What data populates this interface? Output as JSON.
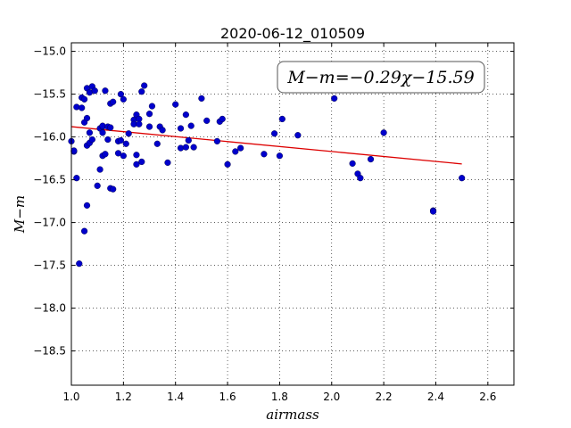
{
  "chart_data": {
    "type": "scatter",
    "title": "2020-06-12_010509",
    "xlabel": "airmass",
    "ylabel": "M−m",
    "xlim": [
      1.0,
      2.7
    ],
    "ylim": [
      -18.9,
      -14.9
    ],
    "y_inverted": true,
    "grid": true,
    "xticks": [
      1.0,
      1.2,
      1.4,
      1.6,
      1.8,
      2.0,
      2.2,
      2.4,
      2.6
    ],
    "yticks": [
      -15.0,
      -15.5,
      -16.0,
      -16.5,
      -17.0,
      -17.5,
      -18.0,
      -18.5
    ],
    "xtick_labels": [
      "1.0",
      "1.2",
      "1.4",
      "1.6",
      "1.8",
      "2.0",
      "2.2",
      "2.4",
      "2.6"
    ],
    "ytick_labels": [
      "−15.0",
      "−15.5",
      "−16.0",
      "−16.5",
      "−17.0",
      "−17.5",
      "−18.0",
      "−18.5"
    ],
    "annotation": "M−m=−0.29χ−15.59",
    "annotation_position": "top-right",
    "point_color": "#0000cc",
    "fit_color": "#dd0000",
    "fit": {
      "slope": -0.29,
      "intercept": -15.59,
      "x_range": [
        1.0,
        2.5
      ]
    },
    "series": [
      {
        "x": [
          1.0,
          1.01,
          1.01,
          1.02,
          1.02,
          1.03,
          1.04,
          1.04,
          1.05,
          1.05,
          1.05,
          1.06,
          1.06,
          1.06,
          1.06,
          1.07,
          1.07,
          1.07,
          1.08,
          1.08,
          1.09,
          1.1,
          1.11,
          1.11,
          1.12,
          1.12,
          1.12,
          1.12,
          1.13,
          1.13,
          1.14,
          1.14,
          1.15,
          1.15,
          1.15,
          1.16,
          1.16,
          1.18,
          1.18,
          1.19,
          1.19,
          1.2,
          1.2,
          1.21,
          1.22,
          1.24,
          1.24,
          1.25,
          1.25,
          1.25,
          1.26,
          1.26,
          1.27,
          1.27,
          1.28,
          1.3,
          1.3,
          1.31,
          1.33,
          1.34,
          1.35,
          1.37,
          1.4,
          1.42,
          1.42,
          1.44,
          1.44,
          1.45,
          1.46,
          1.47,
          1.5,
          1.52,
          1.56,
          1.57,
          1.58,
          1.6,
          1.63,
          1.65,
          1.74,
          1.78,
          1.8,
          1.81,
          1.87,
          2.01,
          2.08,
          2.1,
          2.11,
          2.15,
          2.2,
          2.39,
          2.39,
          2.5
        ],
        "y": [
          -16.05,
          -16.17,
          -16.16,
          -16.48,
          -15.65,
          -17.48,
          -15.54,
          -15.66,
          -15.56,
          -15.83,
          -17.1,
          -15.43,
          -15.78,
          -16.8,
          -16.1,
          -15.48,
          -15.95,
          -16.07,
          -15.41,
          -16.03,
          -15.46,
          -16.57,
          -16.38,
          -15.9,
          -15.88,
          -16.22,
          -15.87,
          -15.95,
          -16.2,
          -15.46,
          -15.88,
          -16.03,
          -15.61,
          -15.89,
          -16.6,
          -15.59,
          -16.61,
          -16.05,
          -16.19,
          -15.5,
          -16.04,
          -15.56,
          -16.22,
          -16.08,
          -15.96,
          -15.8,
          -15.85,
          -15.74,
          -16.21,
          -16.32,
          -15.79,
          -15.85,
          -15.47,
          -16.29,
          -15.4,
          -15.88,
          -15.73,
          -15.64,
          -16.08,
          -15.88,
          -15.92,
          -16.3,
          -15.62,
          -16.13,
          -15.9,
          -15.74,
          -16.12,
          -16.04,
          -15.87,
          -16.12,
          -15.55,
          -15.81,
          -16.05,
          -15.82,
          -15.79,
          -16.32,
          -16.17,
          -16.13,
          -16.2,
          -15.96,
          -16.22,
          -15.79,
          -15.98,
          -15.55,
          -16.31,
          -16.43,
          -16.48,
          -16.26,
          -15.95,
          -16.86,
          -16.87,
          -16.48
        ]
      }
    ]
  }
}
